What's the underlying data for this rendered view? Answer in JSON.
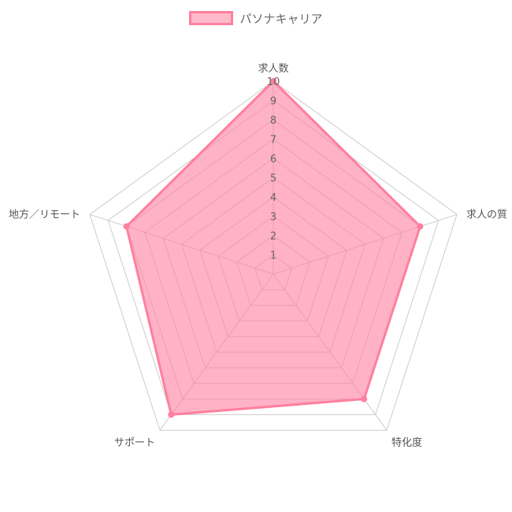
{
  "chart_data": {
    "type": "radar",
    "legend": {
      "position": "top",
      "label": "パソナキャリア"
    },
    "axes": [
      "求人数",
      "求人の質",
      "特化度",
      "サポート",
      "地方／リモート"
    ],
    "ticks": [
      "1",
      "2",
      "3",
      "4",
      "5",
      "6",
      "7",
      "8",
      "9",
      "10"
    ],
    "rlim": [
      0,
      10
    ],
    "grid": true,
    "series": [
      {
        "name": "パソナキャリア",
        "values": [
          10,
          8,
          8,
          9,
          8
        ]
      }
    ],
    "colors": {
      "stroke": "#ff7f9e",
      "fill": "rgba(255,127,158,0.6)",
      "grid": "#cccccc",
      "text": "#666666"
    }
  }
}
